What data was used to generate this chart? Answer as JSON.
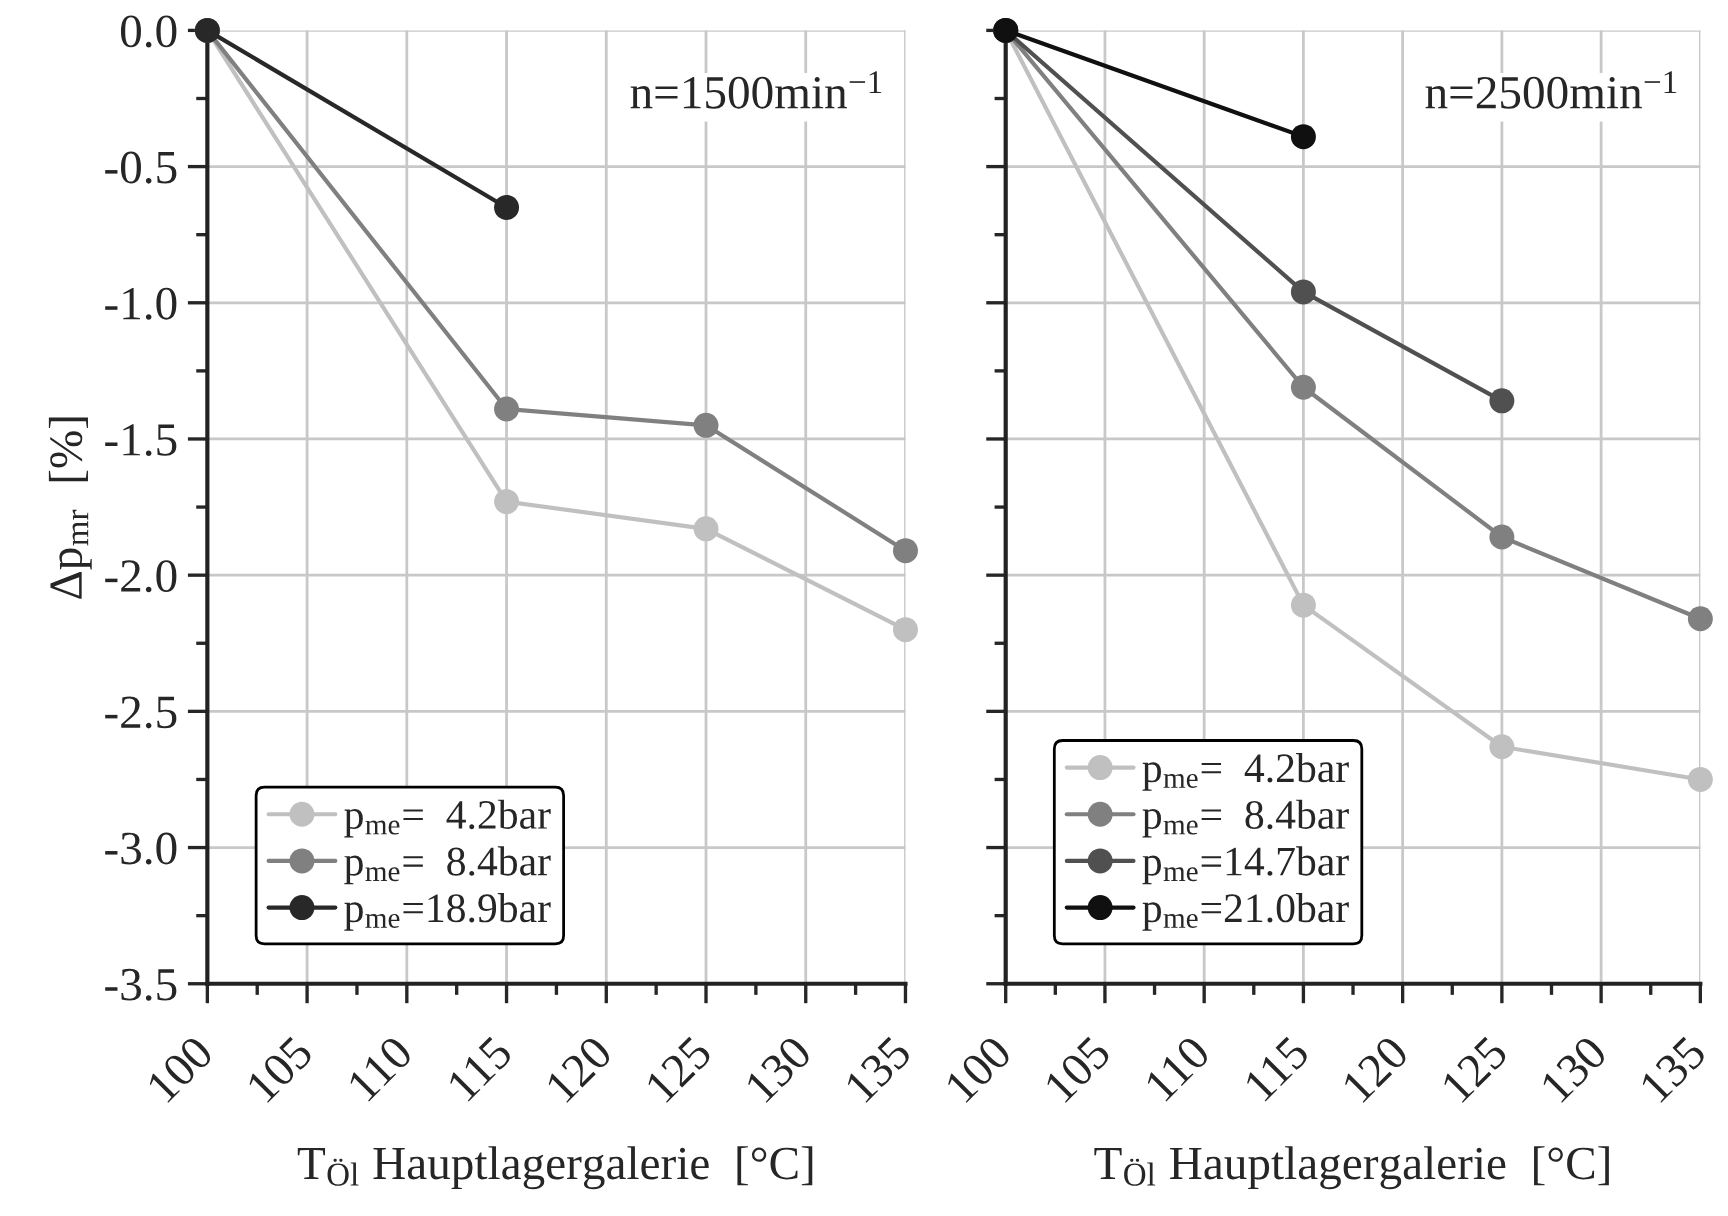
{
  "chart_data": [
    {
      "type": "line",
      "xlabel": "T$_{Öl}$ Hauptlagergalerie  [°C]",
      "ylabel": "Δp$_{mr}$  [%]",
      "annotations": [
        "n=1500min$^{−1}$"
      ],
      "xlim": [
        100,
        135
      ],
      "ylim": [
        -3.5,
        0.0
      ],
      "xticks": [
        100,
        {
          "value": 102.5,
          "label": null
        },
        105,
        {
          "value": 107.5,
          "label": null
        },
        110,
        {
          "value": 112.5,
          "label": null
        },
        115,
        {
          "value": 117.5,
          "label": null
        },
        120,
        {
          "value": 122.5,
          "label": null
        },
        125,
        {
          "value": 127.5,
          "label": null
        },
        130,
        {
          "value": 132.5,
          "label": null
        },
        135
      ],
      "yticks": [
        {
          "value": -3.5,
          "label": "-3.5"
        },
        {
          "value": -3.25,
          "label": null
        },
        {
          "value": -3.0,
          "label": "-3.0"
        },
        {
          "value": -2.75,
          "label": null
        },
        {
          "value": -2.5,
          "label": "-2.5"
        },
        {
          "value": -2.25,
          "label": null
        },
        {
          "value": -2.0,
          "label": "-2.0"
        },
        {
          "value": -1.75,
          "label": null
        },
        {
          "value": -1.5,
          "label": "-1.5"
        },
        {
          "value": -1.25,
          "label": null
        },
        {
          "value": -1.0,
          "label": "-1.0"
        },
        {
          "value": -0.75,
          "label": null
        },
        {
          "value": -0.5,
          "label": "-0.5"
        },
        {
          "value": -0.25,
          "label": null
        },
        {
          "value": 0.0,
          "label": "0.0"
        }
      ],
      "grid": true,
      "legend": "bottom left",
      "marker": "circle",
      "line_style": "solid",
      "series": [
        {
          "name": "p$_{me}$=  4.2bar",
          "color": "#c0c0c0",
          "x": [
            100,
            115,
            125,
            135
          ],
          "values": [
            0.0,
            -1.73,
            -1.83,
            -2.2
          ]
        },
        {
          "name": "p$_{me}$=  8.4bar",
          "color": "#808080",
          "x": [
            100,
            115,
            125,
            135
          ],
          "values": [
            0.0,
            -1.39,
            -1.45,
            -1.91
          ]
        },
        {
          "name": "p$_{me}$=18.9bar",
          "color": "#282828",
          "x": [
            100,
            115
          ],
          "values": [
            0.0,
            -0.65
          ]
        }
      ]
    },
    {
      "type": "line",
      "xlabel": "T$_{Öl}$ Hauptlagergalerie  [°C]",
      "annotations": [
        "n=2500min$^{−1}$"
      ],
      "xlim": [
        100,
        135
      ],
      "ylim": [
        -3.5,
        0.0
      ],
      "tick_labels": "x",
      "xticks": [
        100,
        {
          "value": 102.5,
          "label": null
        },
        105,
        {
          "value": 107.5,
          "label": null
        },
        110,
        {
          "value": 112.5,
          "label": null
        },
        115,
        {
          "value": 117.5,
          "label": null
        },
        120,
        {
          "value": 122.5,
          "label": null
        },
        125,
        {
          "value": 127.5,
          "label": null
        },
        130,
        {
          "value": 132.5,
          "label": null
        },
        135
      ],
      "yticks": [
        {
          "value": -3.5,
          "label": null
        },
        {
          "value": -3.25,
          "label": null
        },
        {
          "value": -3.0,
          "label": null
        },
        {
          "value": -2.75,
          "label": null
        },
        {
          "value": -2.5,
          "label": null
        },
        {
          "value": -2.25,
          "label": null
        },
        {
          "value": -2.0,
          "label": null
        },
        {
          "value": -1.75,
          "label": null
        },
        {
          "value": -1.5,
          "label": null
        },
        {
          "value": -1.25,
          "label": null
        },
        {
          "value": -1.0,
          "label": null
        },
        {
          "value": -0.75,
          "label": null
        },
        {
          "value": -0.5,
          "label": null
        },
        {
          "value": -0.25,
          "label": null
        },
        {
          "value": 0.0,
          "label": null
        }
      ],
      "grid": true,
      "legend": "bottom left",
      "marker": "circle",
      "line_style": "solid",
      "series": [
        {
          "name": "p$_{me}$=  4.2bar",
          "color": "#c0c0c0",
          "x": [
            100,
            115,
            125,
            135
          ],
          "values": [
            0.0,
            -2.11,
            -2.63,
            -2.75
          ]
        },
        {
          "name": "p$_{me}$=  8.4bar",
          "color": "#808080",
          "x": [
            100,
            115,
            125,
            135
          ],
          "values": [
            0.0,
            -1.31,
            -1.86,
            -2.16
          ]
        },
        {
          "name": "p$_{me}$=14.7bar",
          "color": "#505050",
          "x": [
            100,
            115,
            125
          ],
          "values": [
            0.0,
            -0.96,
            -1.36
          ]
        },
        {
          "name": "p$_{me}$=21.0bar",
          "color": "#101010",
          "x": [
            100,
            115
          ],
          "values": [
            0.0,
            -0.39
          ]
        }
      ]
    }
  ]
}
